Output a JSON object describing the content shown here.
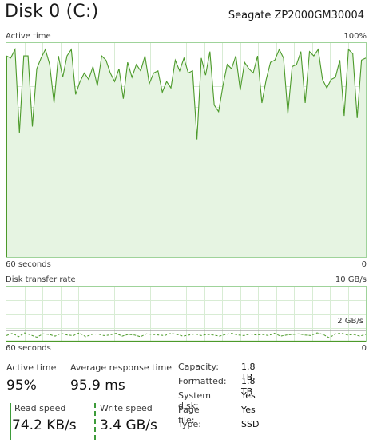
{
  "header": {
    "title": "Disk 0 (C:)",
    "model": "Seagate ZP2000GM30004"
  },
  "active_chart": {
    "label": "Active time",
    "max_label": "100%",
    "time_label": "60 seconds",
    "min_label": "0",
    "values": [
      94,
      93,
      97,
      58,
      94,
      94,
      61,
      88,
      93,
      97,
      90,
      72,
      94,
      84,
      94,
      97,
      76,
      82,
      86,
      83,
      89,
      80,
      94,
      92,
      86,
      82,
      88,
      74,
      91,
      84,
      90,
      87,
      94,
      81,
      86,
      87,
      77,
      82,
      79,
      92,
      87,
      93,
      86,
      87,
      55,
      93,
      85,
      96,
      71,
      68,
      80,
      90,
      88,
      94,
      78,
      91,
      88,
      86,
      94,
      72,
      83,
      91,
      92,
      97,
      93,
      67,
      89,
      90,
      96,
      72,
      96,
      94,
      97,
      83,
      79,
      83,
      84,
      92,
      66,
      97,
      95,
      65,
      92,
      93
    ],
    "colors": {
      "line": "#4c9a2a",
      "fill": "#e6f4e2",
      "grid": "#d8ecd4",
      "border": "#9fd39a"
    }
  },
  "transfer_chart": {
    "label": "Disk transfer rate",
    "max_label": "10 GB/s",
    "time_label": "60 seconds",
    "min_label": "0",
    "ref_label": "2 GB/s",
    "ref_value": 2,
    "max_value": 10,
    "read_values": [
      0,
      0,
      0,
      0,
      0,
      0,
      0,
      0,
      0,
      0,
      0,
      0,
      0,
      0,
      0,
      0,
      0,
      0,
      0,
      0,
      0,
      0,
      0,
      0,
      0,
      0,
      0,
      0,
      0,
      0,
      0,
      0,
      0,
      0,
      0,
      0,
      0,
      0,
      0,
      0,
      0,
      0,
      0,
      0,
      0,
      0,
      0,
      0,
      0,
      0,
      0,
      0,
      0,
      0,
      0,
      0,
      0,
      0,
      0,
      0
    ],
    "write_values": [
      1.1,
      1.5,
      0.9,
      1.6,
      1.2,
      0.8,
      1.4,
      1.3,
      1.0,
      1.5,
      1.2,
      1.1,
      1.6,
      0.9,
      1.3,
      1.4,
      1.1,
      1.2,
      1.5,
      1.0,
      1.3,
      1.2,
      0.9,
      1.4,
      1.3,
      1.2,
      1.1,
      1.5,
      1.3,
      1.0,
      1.2,
      1.4,
      1.1,
      1.3,
      1.2,
      1.0,
      1.3,
      1.5,
      1.2,
      1.1,
      1.4,
      1.2,
      1.3,
      1.1,
      1.5,
      1.0,
      1.2,
      1.3,
      1.4,
      1.2,
      1.1,
      1.6,
      1.3,
      0.7,
      1.4,
      1.5,
      1.2,
      1.3,
      1.0,
      1.3
    ],
    "colors": {
      "write": "#4c9a2a",
      "read": "#4c9a2a",
      "grid": "#d8ecd4"
    }
  },
  "stats": {
    "active_time_label": "Active time",
    "active_time_value": "95%",
    "response_label": "Average response time",
    "response_value": "95.9 ms",
    "read_label": "Read speed",
    "read_value": "74.2 KB/s",
    "write_label": "Write speed",
    "write_value": "3.4 GB/s"
  },
  "info": [
    {
      "label": "Capacity:",
      "value": "1.8 TB"
    },
    {
      "label": "Formatted:",
      "value": "1.8 TB"
    },
    {
      "label": "System disk:",
      "value": "Yes"
    },
    {
      "label": "Page file:",
      "value": "Yes"
    },
    {
      "label": "Type:",
      "value": "SSD"
    }
  ]
}
